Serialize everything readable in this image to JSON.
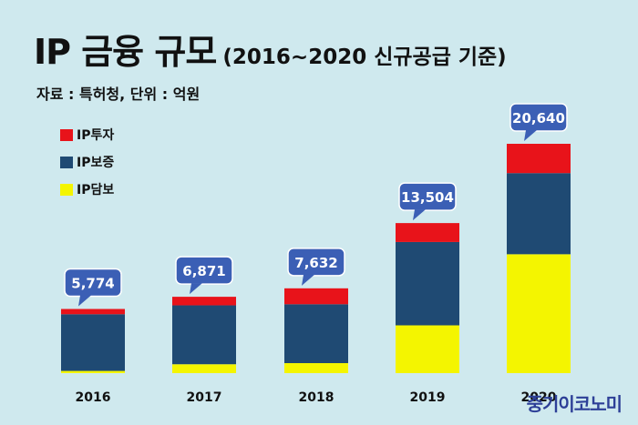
{
  "title": "IP 금융 규모",
  "subtitle": "(2016~2020 신규공급 기준)",
  "source": "자료 : 특허청, 단위 : 억원",
  "watermark": "중기이코노미",
  "colors": {
    "background": "#cfe9ee",
    "ip_investment": "#e8131a",
    "ip_guarantee": "#1f4a73",
    "ip_collateral": "#f4f500",
    "callout": "#3b5fb5"
  },
  "chart_data": {
    "type": "bar",
    "stacked": true,
    "title": "IP 금융 규모",
    "subtitle": "(2016~2020 신규공급 기준)",
    "unit": "억원",
    "categories": [
      "2016",
      "2017",
      "2018",
      "2019",
      "2020"
    ],
    "totals": [
      5774,
      6871,
      7632,
      13504,
      20640
    ],
    "total_labels": [
      "5,774",
      "6,871",
      "7,632",
      "13,504",
      "20,640"
    ],
    "series": [
      {
        "name": "IP담보",
        "color": "#f4f500",
        "values": [
          200,
          800,
          900,
          4300,
          10700
        ]
      },
      {
        "name": "IP보증",
        "color": "#1f4a73",
        "values": [
          5100,
          5300,
          5300,
          7500,
          7300
        ]
      },
      {
        "name": "IP투자",
        "color": "#e8131a",
        "values": [
          474,
          771,
          1432,
          1704,
          2640
        ]
      }
    ],
    "legend_order": [
      "IP투자",
      "IP보증",
      "IP담보"
    ],
    "legend_position": "top-left",
    "grid": false
  }
}
